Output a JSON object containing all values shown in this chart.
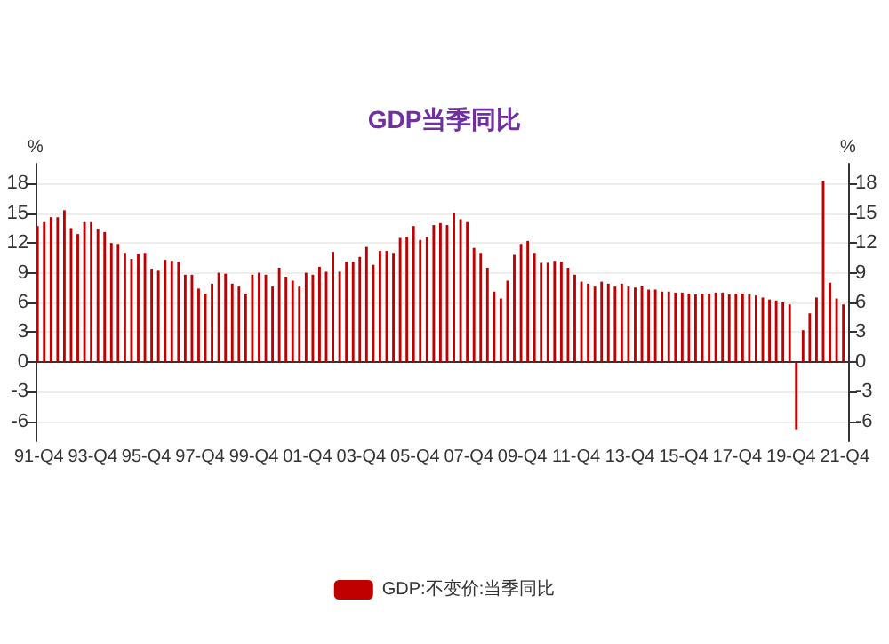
{
  "chart_data": {
    "type": "bar",
    "title": "GDP当季同比",
    "ylabel": "%",
    "y2label": "%",
    "categories": [
      "91-Q4",
      null,
      null,
      null,
      null,
      null,
      null,
      null,
      "93-Q4",
      null,
      null,
      null,
      null,
      null,
      null,
      null,
      "95-Q4",
      null,
      null,
      null,
      null,
      null,
      null,
      null,
      "97-Q4",
      null,
      null,
      null,
      null,
      null,
      null,
      null,
      "99-Q4",
      null,
      null,
      null,
      null,
      null,
      null,
      null,
      "01-Q4",
      null,
      null,
      null,
      null,
      null,
      null,
      null,
      "03-Q4",
      null,
      null,
      null,
      null,
      null,
      null,
      null,
      "05-Q4",
      null,
      null,
      null,
      null,
      null,
      null,
      null,
      "07-Q4",
      null,
      null,
      null,
      null,
      null,
      null,
      null,
      "09-Q4",
      null,
      null,
      null,
      null,
      null,
      null,
      null,
      "11-Q4",
      null,
      null,
      null,
      null,
      null,
      null,
      null,
      "13-Q4",
      null,
      null,
      null,
      null,
      null,
      null,
      null,
      "15-Q4",
      null,
      null,
      null,
      null,
      null,
      null,
      null,
      "17-Q4",
      null,
      null,
      null,
      null,
      null,
      null,
      null,
      "19-Q4",
      null,
      null,
      null,
      null,
      null,
      null,
      null,
      "21-Q4"
    ],
    "series": [
      {
        "name": "GDP:不变价:当季同比",
        "color": "#c00000",
        "values": [
          13.7,
          14.1,
          14.6,
          14.6,
          15.3,
          13.5,
          12.9,
          14.1,
          14.1,
          13.4,
          13.1,
          12.0,
          11.9,
          11.0,
          10.4,
          10.9,
          11.0,
          9.4,
          9.2,
          10.3,
          10.2,
          10.1,
          8.8,
          8.8,
          7.4,
          6.9,
          7.9,
          9.0,
          8.9,
          7.9,
          7.6,
          6.9,
          8.8,
          9.0,
          8.8,
          7.6,
          9.5,
          8.6,
          8.2,
          7.6,
          9.0,
          8.8,
          9.6,
          9.1,
          11.1,
          9.1,
          10.1,
          10.1,
          10.6,
          11.6,
          9.8,
          11.2,
          11.2,
          11.0,
          12.5,
          12.6,
          13.7,
          12.3,
          12.6,
          13.8,
          14.0,
          13.8,
          15.0,
          14.4,
          14.1,
          11.5,
          11.0,
          9.5,
          7.1,
          6.4,
          8.2,
          10.8,
          11.9,
          12.2,
          11.0,
          10.0,
          10.0,
          10.2,
          10.1,
          9.5,
          8.8,
          8.1,
          7.9,
          7.6,
          8.1,
          7.9,
          7.6,
          7.9,
          7.6,
          7.5,
          7.7,
          7.3,
          7.3,
          7.1,
          7.1,
          7.0,
          7.0,
          6.9,
          6.8,
          6.9,
          6.9,
          7.0,
          7.0,
          6.8,
          6.9,
          6.9,
          6.8,
          6.7,
          6.5,
          6.3,
          6.2,
          6.0,
          5.8,
          -6.8,
          3.2,
          4.9,
          6.5,
          18.3,
          8.0,
          6.4,
          5.8
        ]
      }
    ],
    "ylim": [
      -8,
      20
    ],
    "yticks": [
      -6,
      -3,
      0,
      3,
      6,
      9,
      12,
      15,
      18
    ],
    "y2lim": [
      -8,
      20
    ],
    "y2ticks": [
      -6,
      -3,
      0,
      3,
      6,
      9,
      12,
      15,
      18
    ],
    "grid": "y",
    "legend": "bottom"
  }
}
